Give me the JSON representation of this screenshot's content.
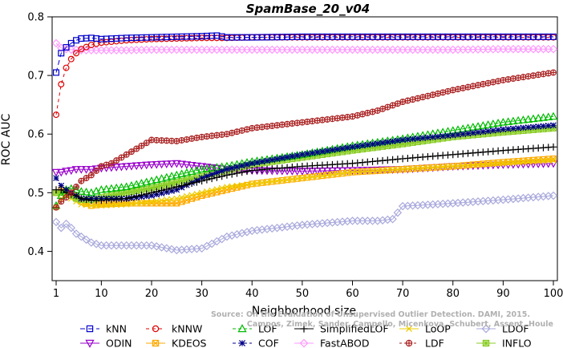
{
  "chart_data": {
    "type": "line",
    "title": "SpamBase_20_v04",
    "xlabel": "Neighborhood size",
    "ylabel": "ROC AUC",
    "xlim": [
      1,
      100
    ],
    "ylim": [
      0.35,
      0.8
    ],
    "xticks": [
      1,
      10,
      20,
      30,
      40,
      50,
      60,
      70,
      80,
      90,
      100
    ],
    "yticks": [
      0.4,
      0.5,
      0.6,
      0.7,
      0.8
    ],
    "grid": false,
    "legend_position": "bottom",
    "watermark_lines": [
      "Source: On the Evaluation of Unsupervised Outlier Detection. DAMI, 2015.",
      "Campos, Zimek, Sander, Campello, Micenkova, Schubert, Assent, Houle"
    ],
    "series": [
      {
        "name": "kNN",
        "color": "#0000cc",
        "marker": "square",
        "dash": "6,4",
        "x": [
          1,
          2,
          3,
          4,
          5,
          6,
          8,
          10,
          15,
          20,
          25,
          30,
          33,
          35,
          40,
          50,
          60,
          70,
          80,
          90,
          100
        ],
        "y": [
          0.705,
          0.738,
          0.748,
          0.755,
          0.76,
          0.763,
          0.764,
          0.762,
          0.764,
          0.765,
          0.766,
          0.767,
          0.768,
          0.765,
          0.765,
          0.766,
          0.766,
          0.766,
          0.766,
          0.766,
          0.766
        ]
      },
      {
        "name": "kNNW",
        "color": "#dd0000",
        "marker": "circle",
        "dash": "4,4",
        "x": [
          1,
          2,
          3,
          4,
          5,
          6,
          8,
          10,
          15,
          20,
          25,
          30,
          35,
          40,
          50,
          60,
          70,
          80,
          90,
          100
        ],
        "y": [
          0.633,
          0.685,
          0.713,
          0.728,
          0.738,
          0.745,
          0.752,
          0.756,
          0.76,
          0.762,
          0.763,
          0.764,
          0.764,
          0.765,
          0.765,
          0.765,
          0.765,
          0.765,
          0.765,
          0.765
        ]
      },
      {
        "name": "LOF",
        "color": "#00bb00",
        "marker": "triangle-up",
        "dash": "4,3",
        "x": [
          1,
          2,
          3,
          4,
          5,
          6,
          8,
          10,
          15,
          20,
          25,
          30,
          35,
          40,
          50,
          60,
          70,
          80,
          90,
          100
        ],
        "y": [
          0.478,
          0.495,
          0.505,
          0.507,
          0.505,
          0.502,
          0.5,
          0.505,
          0.51,
          0.52,
          0.53,
          0.54,
          0.545,
          0.553,
          0.565,
          0.58,
          0.592,
          0.606,
          0.62,
          0.63
        ]
      },
      {
        "name": "SimplifiedLOF",
        "color": "#000000",
        "marker": "plus",
        "dash": "",
        "x": [
          1,
          2,
          3,
          4,
          5,
          6,
          8,
          10,
          15,
          20,
          25,
          30,
          35,
          40,
          50,
          60,
          70,
          80,
          90,
          100
        ],
        "y": [
          0.505,
          0.505,
          0.5,
          0.497,
          0.495,
          0.49,
          0.487,
          0.487,
          0.49,
          0.5,
          0.51,
          0.52,
          0.53,
          0.538,
          0.545,
          0.55,
          0.558,
          0.565,
          0.572,
          0.578
        ]
      },
      {
        "name": "LoOP",
        "color": "#eecc00",
        "marker": "x",
        "dash": "",
        "x": [
          1,
          2,
          3,
          4,
          5,
          6,
          8,
          10,
          15,
          20,
          25,
          30,
          35,
          40,
          50,
          60,
          70,
          80,
          90,
          100
        ],
        "y": [
          0.475,
          0.49,
          0.495,
          0.49,
          0.485,
          0.48,
          0.478,
          0.478,
          0.48,
          0.485,
          0.49,
          0.5,
          0.51,
          0.515,
          0.525,
          0.535,
          0.54,
          0.545,
          0.55,
          0.555
        ]
      },
      {
        "name": "LDOF",
        "color": "#aaaadd",
        "marker": "diamond",
        "dash": "",
        "x": [
          1,
          2,
          3,
          4,
          5,
          6,
          8,
          10,
          15,
          20,
          25,
          30,
          35,
          40,
          50,
          60,
          65,
          68,
          70,
          80,
          90,
          100
        ],
        "y": [
          0.45,
          0.44,
          0.447,
          0.44,
          0.43,
          0.425,
          0.415,
          0.41,
          0.41,
          0.41,
          0.402,
          0.405,
          0.425,
          0.435,
          0.445,
          0.452,
          0.452,
          0.455,
          0.477,
          0.482,
          0.488,
          0.495
        ]
      },
      {
        "name": "ODIN",
        "color": "#9900cc",
        "marker": "triangle-down",
        "dash": "",
        "x": [
          1,
          2,
          3,
          4,
          5,
          6,
          8,
          10,
          15,
          20,
          25,
          30,
          35,
          40,
          50,
          60,
          70,
          80,
          90,
          100
        ],
        "y": [
          0.535,
          0.535,
          0.537,
          0.538,
          0.54,
          0.54,
          0.54,
          0.542,
          0.545,
          0.548,
          0.55,
          0.545,
          0.54,
          0.538,
          0.537,
          0.538,
          0.54,
          0.545,
          0.548,
          0.55
        ]
      },
      {
        "name": "KDEOS",
        "color": "#ffaa00",
        "marker": "square-x",
        "dash": "",
        "x": [
          1,
          2,
          3,
          4,
          5,
          6,
          8,
          10,
          15,
          20,
          25,
          30,
          35,
          40,
          50,
          60,
          70,
          80,
          90,
          100
        ],
        "y": [
          0.5,
          0.505,
          0.503,
          0.5,
          0.495,
          0.485,
          0.478,
          0.48,
          0.482,
          0.482,
          0.482,
          0.495,
          0.505,
          0.515,
          0.525,
          0.535,
          0.54,
          0.545,
          0.552,
          0.558
        ]
      },
      {
        "name": "COF",
        "color": "#000088",
        "marker": "star",
        "dash": "4,3",
        "x": [
          1,
          2,
          3,
          4,
          5,
          6,
          8,
          10,
          15,
          20,
          25,
          30,
          35,
          40,
          50,
          60,
          70,
          80,
          90,
          100
        ],
        "y": [
          0.525,
          0.512,
          0.505,
          0.5,
          0.495,
          0.49,
          0.49,
          0.49,
          0.49,
          0.495,
          0.505,
          0.525,
          0.54,
          0.55,
          0.565,
          0.578,
          0.59,
          0.598,
          0.608,
          0.615
        ]
      },
      {
        "name": "FastABOD",
        "color": "#ff99ff",
        "marker": "diamond",
        "dash": "",
        "x": [
          1,
          2,
          3,
          4,
          5,
          6,
          8,
          10,
          15,
          20,
          25,
          30,
          35,
          40,
          50,
          60,
          70,
          80,
          90,
          100
        ],
        "y": [
          0.755,
          0.747,
          0.745,
          0.744,
          0.744,
          0.743,
          0.743,
          0.743,
          0.743,
          0.744,
          0.744,
          0.744,
          0.744,
          0.744,
          0.744,
          0.744,
          0.744,
          0.744,
          0.745,
          0.745
        ]
      },
      {
        "name": "LDF",
        "color": "#aa2222",
        "marker": "circle-plus",
        "dash": "3,3",
        "x": [
          1,
          2,
          3,
          4,
          5,
          6,
          8,
          10,
          12,
          15,
          18,
          20,
          25,
          30,
          35,
          40,
          50,
          60,
          65,
          70,
          80,
          90,
          100
        ],
        "y": [
          0.475,
          0.485,
          0.492,
          0.5,
          0.51,
          0.52,
          0.53,
          0.545,
          0.55,
          0.565,
          0.58,
          0.59,
          0.588,
          0.595,
          0.6,
          0.61,
          0.62,
          0.63,
          0.64,
          0.655,
          0.675,
          0.692,
          0.705
        ]
      },
      {
        "name": "INFLO",
        "color": "#88cc22",
        "marker": "square-cross",
        "dash": "",
        "x": [
          1,
          2,
          3,
          4,
          5,
          6,
          8,
          10,
          15,
          20,
          25,
          30,
          35,
          40,
          50,
          60,
          70,
          80,
          90,
          100
        ],
        "y": [
          0.5,
          0.5,
          0.498,
          0.495,
          0.49,
          0.488,
          0.488,
          0.492,
          0.5,
          0.508,
          0.518,
          0.528,
          0.538,
          0.548,
          0.56,
          0.572,
          0.583,
          0.595,
          0.603,
          0.61
        ]
      }
    ]
  }
}
